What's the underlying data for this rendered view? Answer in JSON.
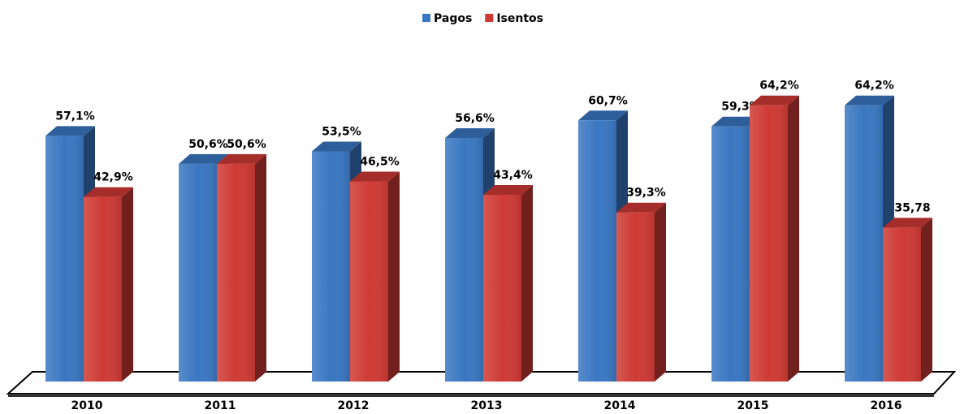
{
  "chart_data": {
    "type": "bar3d",
    "categories": [
      "2010",
      "2011",
      "2012",
      "2013",
      "2014",
      "2015",
      "2016"
    ],
    "series": [
      {
        "name": "Pagos",
        "color": "#3a77c2",
        "values": [
          57.1,
          50.6,
          53.5,
          56.6,
          60.7,
          59.3,
          64.2
        ],
        "value_labels": [
          "57,1%",
          "50,6%",
          "53,5%",
          "56,6%",
          "60,7%",
          "59,3%",
          "64,2%"
        ]
      },
      {
        "name": "Isentos",
        "color": "#cf3a34",
        "values": [
          42.9,
          50.6,
          46.5,
          43.4,
          39.3,
          64.2,
          35.78
        ],
        "value_labels": [
          "42,9%",
          "50,6%",
          "46,5%",
          "43,4%",
          "39,3%",
          "64,2%",
          "35,78"
        ]
      }
    ],
    "legend": "top"
  }
}
